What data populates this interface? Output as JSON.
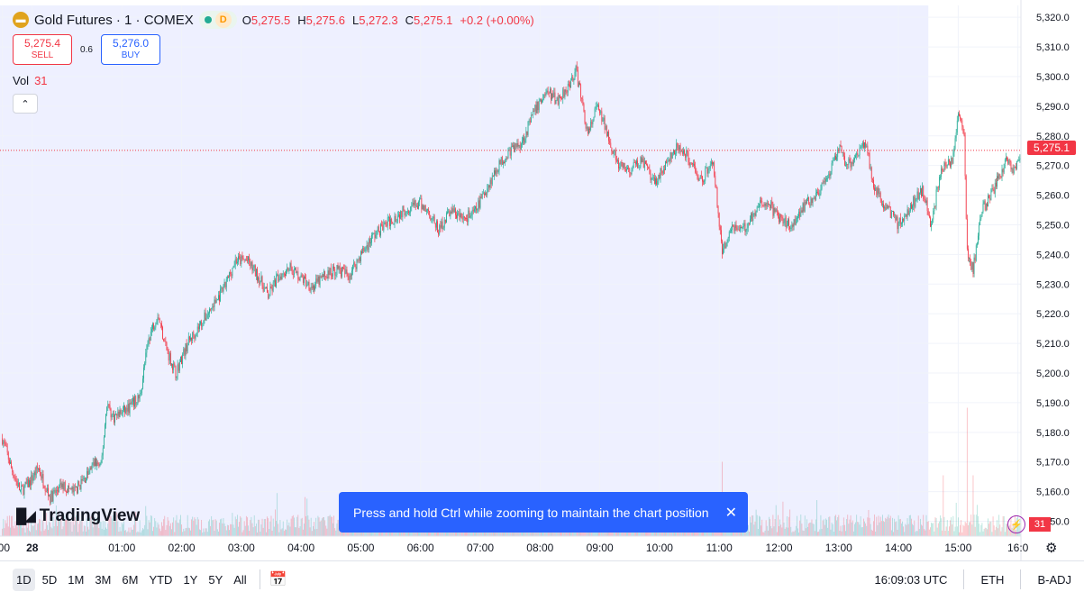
{
  "header": {
    "symbol_title": "Gold Futures · 1 · COMEX",
    "session_letter": "D",
    "ohlc": [
      {
        "k": "O",
        "v": "5,275.5"
      },
      {
        "k": "H",
        "v": "5,275.6"
      },
      {
        "k": "L",
        "v": "5,272.3"
      },
      {
        "k": "C",
        "v": "5,275.1"
      },
      {
        "k": "",
        "v": "+0.2 (+0.00%)"
      }
    ],
    "logo_icon": "gold-coin-icon"
  },
  "trade": {
    "sell_price": "5,275.4",
    "sell_label": "SELL",
    "spread": "0.6",
    "buy_price": "5,276.0",
    "buy_label": "BUY"
  },
  "volume": {
    "label": "Vol",
    "value": "31"
  },
  "branding": "TradingView",
  "toast": "Press and hold Ctrl while zooming to maintain the chart position",
  "last_price_label": "5,275.1",
  "volume_badge": "31",
  "bottom_bar": {
    "ranges": [
      "1D",
      "5D",
      "1M",
      "3M",
      "6M",
      "YTD",
      "1Y",
      "5Y",
      "All"
    ],
    "active_range": "1D",
    "clock": "16:09:03 UTC",
    "session": "ETH",
    "adjustment": "B-ADJ"
  },
  "colors": {
    "up": "#22ab94",
    "down": "#f23645",
    "session_shade": "#eef0ff",
    "accent": "#2962ff"
  },
  "chart_data": {
    "type": "candlestick",
    "interval": "1 minute",
    "price_axis_ticks": [
      5150,
      5160,
      5170,
      5180,
      5190,
      5200,
      5210,
      5220,
      5230,
      5240,
      5250,
      5260,
      5270,
      5280,
      5290,
      5300,
      5310,
      5320
    ],
    "price_axis_labels": [
      "5,150.0",
      "5,160.0",
      "5,170.0",
      "5,180.0",
      "5,190.0",
      "5,200.0",
      "5,210.0",
      "5,220.0",
      "5,230.0",
      "5,240.0",
      "5,250.0",
      "5,260.0",
      "5,270.0",
      "5,280.0",
      "5,290.0",
      "5,300.0",
      "5,310.0",
      "5,320.0"
    ],
    "ylim": [
      5145,
      5324
    ],
    "time_axis_labels": [
      ":00",
      "28",
      "01:00",
      "02:00",
      "03:00",
      "04:00",
      "05:00",
      "06:00",
      "07:00",
      "08:00",
      "09:00",
      "10:00",
      "11:00",
      "12:00",
      "13:00",
      "14:00",
      "15:00",
      "16:0"
    ],
    "time_axis_hours": [
      -1.0,
      -0.5,
      1,
      2,
      3,
      4,
      5,
      6,
      7,
      8,
      9,
      10,
      11,
      12,
      13,
      14,
      15,
      16
    ],
    "xlim_hours": [
      -1.04,
      16.05
    ],
    "extended_session_end_hour": 14.5,
    "last_price": 5275.1,
    "close_path": [
      {
        "t": -1.0,
        "p": 5178
      },
      {
        "t": -0.85,
        "p": 5168
      },
      {
        "t": -0.7,
        "p": 5160
      },
      {
        "t": -0.55,
        "p": 5163
      },
      {
        "t": -0.4,
        "p": 5168
      },
      {
        "t": -0.3,
        "p": 5163
      },
      {
        "t": -0.2,
        "p": 5158
      },
      {
        "t": 0.0,
        "p": 5162
      },
      {
        "t": 0.2,
        "p": 5160
      },
      {
        "t": 0.4,
        "p": 5165
      },
      {
        "t": 0.55,
        "p": 5170
      },
      {
        "t": 0.65,
        "p": 5168
      },
      {
        "t": 0.75,
        "p": 5190
      },
      {
        "t": 0.85,
        "p": 5185
      },
      {
        "t": 1.1,
        "p": 5188
      },
      {
        "t": 1.3,
        "p": 5192
      },
      {
        "t": 1.45,
        "p": 5212
      },
      {
        "t": 1.6,
        "p": 5220
      },
      {
        "t": 1.75,
        "p": 5208
      },
      {
        "t": 1.9,
        "p": 5200
      },
      {
        "t": 2.1,
        "p": 5210
      },
      {
        "t": 2.3,
        "p": 5216
      },
      {
        "t": 2.5,
        "p": 5222
      },
      {
        "t": 2.7,
        "p": 5228
      },
      {
        "t": 2.9,
        "p": 5238
      },
      {
        "t": 3.1,
        "p": 5238
      },
      {
        "t": 3.3,
        "p": 5232
      },
      {
        "t": 3.45,
        "p": 5226
      },
      {
        "t": 3.6,
        "p": 5232
      },
      {
        "t": 3.8,
        "p": 5236
      },
      {
        "t": 4.0,
        "p": 5232
      },
      {
        "t": 4.2,
        "p": 5229
      },
      {
        "t": 4.4,
        "p": 5233
      },
      {
        "t": 4.6,
        "p": 5235
      },
      {
        "t": 4.8,
        "p": 5233
      },
      {
        "t": 5.0,
        "p": 5240
      },
      {
        "t": 5.2,
        "p": 5246
      },
      {
        "t": 5.4,
        "p": 5250
      },
      {
        "t": 5.6,
        "p": 5253
      },
      {
        "t": 5.8,
        "p": 5256
      },
      {
        "t": 6.0,
        "p": 5257
      },
      {
        "t": 6.15,
        "p": 5254
      },
      {
        "t": 6.3,
        "p": 5248
      },
      {
        "t": 6.5,
        "p": 5255
      },
      {
        "t": 6.7,
        "p": 5252
      },
      {
        "t": 6.9,
        "p": 5254
      },
      {
        "t": 7.1,
        "p": 5262
      },
      {
        "t": 7.3,
        "p": 5270
      },
      {
        "t": 7.5,
        "p": 5275
      },
      {
        "t": 7.7,
        "p": 5278
      },
      {
        "t": 7.9,
        "p": 5288
      },
      {
        "t": 8.1,
        "p": 5295
      },
      {
        "t": 8.3,
        "p": 5292
      },
      {
        "t": 8.5,
        "p": 5298
      },
      {
        "t": 8.6,
        "p": 5302
      },
      {
        "t": 8.7,
        "p": 5292
      },
      {
        "t": 8.8,
        "p": 5280
      },
      {
        "t": 8.95,
        "p": 5290
      },
      {
        "t": 9.15,
        "p": 5280
      },
      {
        "t": 9.3,
        "p": 5270
      },
      {
        "t": 9.5,
        "p": 5268
      },
      {
        "t": 9.7,
        "p": 5272
      },
      {
        "t": 9.9,
        "p": 5264
      },
      {
        "t": 10.1,
        "p": 5270
      },
      {
        "t": 10.3,
        "p": 5276
      },
      {
        "t": 10.5,
        "p": 5272
      },
      {
        "t": 10.7,
        "p": 5265
      },
      {
        "t": 10.9,
        "p": 5272
      },
      {
        "t": 11.0,
        "p": 5250
      },
      {
        "t": 11.05,
        "p": 5240
      },
      {
        "t": 11.2,
        "p": 5250
      },
      {
        "t": 11.4,
        "p": 5248
      },
      {
        "t": 11.6,
        "p": 5255
      },
      {
        "t": 11.8,
        "p": 5258
      },
      {
        "t": 12.0,
        "p": 5252
      },
      {
        "t": 12.2,
        "p": 5250
      },
      {
        "t": 12.4,
        "p": 5256
      },
      {
        "t": 12.6,
        "p": 5260
      },
      {
        "t": 12.8,
        "p": 5264
      },
      {
        "t": 13.0,
        "p": 5276
      },
      {
        "t": 13.15,
        "p": 5270
      },
      {
        "t": 13.3,
        "p": 5274
      },
      {
        "t": 13.45,
        "p": 5278
      },
      {
        "t": 13.6,
        "p": 5262
      },
      {
        "t": 13.8,
        "p": 5256
      },
      {
        "t": 14.0,
        "p": 5250
      },
      {
        "t": 14.2,
        "p": 5256
      },
      {
        "t": 14.4,
        "p": 5262
      },
      {
        "t": 14.55,
        "p": 5250
      },
      {
        "t": 14.7,
        "p": 5268
      },
      {
        "t": 14.9,
        "p": 5272
      },
      {
        "t": 15.0,
        "p": 5288
      },
      {
        "t": 15.1,
        "p": 5280
      },
      {
        "t": 15.15,
        "p": 5240
      },
      {
        "t": 15.25,
        "p": 5235
      },
      {
        "t": 15.4,
        "p": 5255
      },
      {
        "t": 15.6,
        "p": 5262
      },
      {
        "t": 15.8,
        "p": 5272
      },
      {
        "t": 15.95,
        "p": 5268
      },
      {
        "t": 16.05,
        "p": 5275.1
      }
    ],
    "volume_spikes": [
      {
        "t": 11.05,
        "rel": 0.55
      },
      {
        "t": 14.75,
        "rel": 0.45
      },
      {
        "t": 15.15,
        "rel": 0.95
      },
      {
        "t": 15.25,
        "rel": 0.45
      }
    ]
  }
}
